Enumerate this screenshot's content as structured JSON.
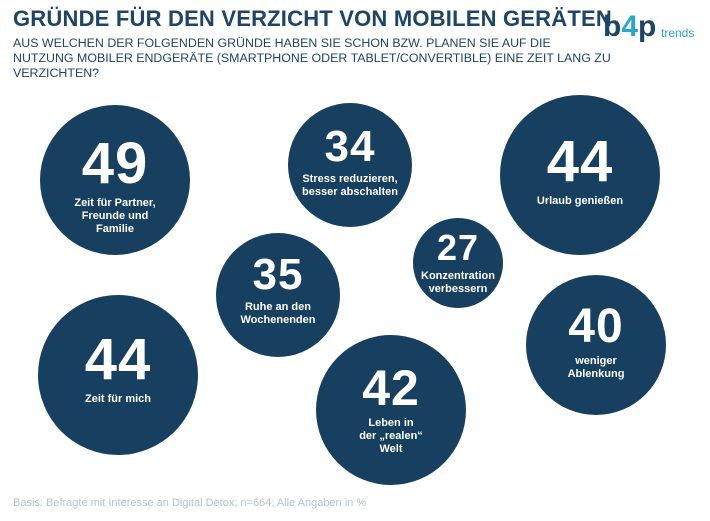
{
  "title": "GRÜNDE FÜR DEN VERZICHT VON MOBILEN GERÄTEN",
  "subtitle": "AUS WELCHEN DER FOLGENDEN GRÜNDE HABEN SIE SCHON BZW. PLANEN SIE AUF DIE NUTZUNG MOBILER ENDGERÄTE (SMARTPHONE ODER TABLET/CONVERTIBLE) EINE ZEIT LANG ZU VERZICHTEN?",
  "logo": {
    "main_left": "b",
    "main_accent": "4",
    "main_right": "p",
    "sub": "trends"
  },
  "footnote": "Basis: Befragte mit Interesse an Digital Detox; n=664; Alle Angaben in %",
  "colors": {
    "bubble": "#173f5f",
    "accent": "#2aa6cd",
    "text": "#1e4566"
  },
  "chart_data": {
    "type": "bubble",
    "unit": "%",
    "items": [
      {
        "label": "Zeit für Partner, Freunde und Familie",
        "value": 49
      },
      {
        "label": "Stress reduzieren, besser abschalten",
        "value": 34
      },
      {
        "label": "Urlaub genießen",
        "value": 44
      },
      {
        "label": "Konzentration verbessern",
        "value": 27
      },
      {
        "label": "Ruhe an den Wochenenden",
        "value": 35
      },
      {
        "label": "Zeit für mich",
        "value": 44
      },
      {
        "label": "weniger Ablenkung",
        "value": 40
      },
      {
        "label": "Leben in der „realen“ Welt",
        "value": 42
      }
    ]
  }
}
